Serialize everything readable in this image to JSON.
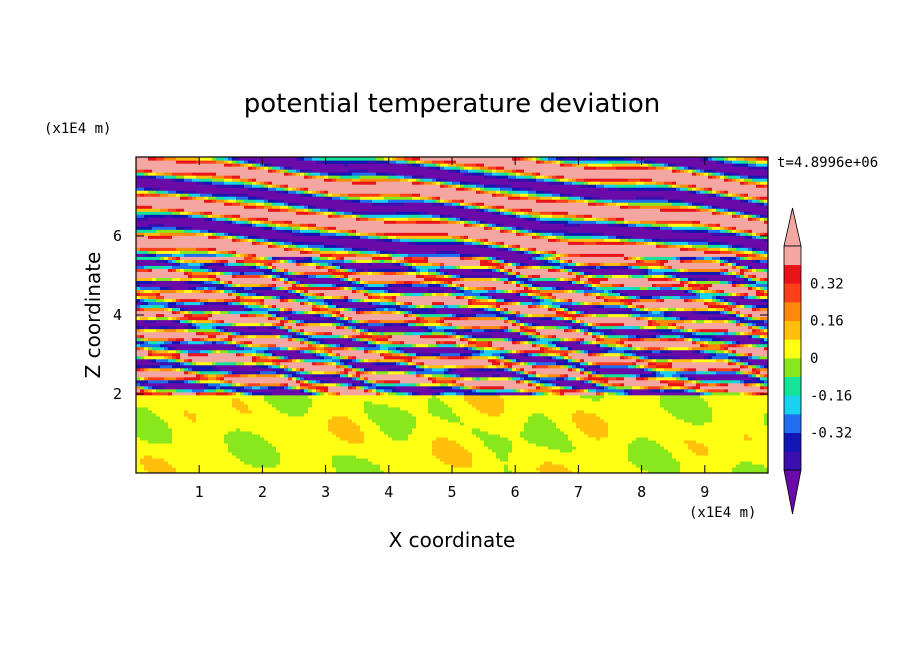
{
  "chart_data": {
    "type": "heatmap",
    "title": "potential temperature deviation",
    "xlabel": "X coordinate",
    "ylabel": "Z coordinate",
    "x_unit": "(x1E4 m)",
    "y_unit": "(x1E4 m)",
    "time_label": "t=4.8996e+06",
    "xlim": [
      0,
      10
    ],
    "ylim": [
      0,
      8
    ],
    "x_ticks": [
      "1",
      "2",
      "3",
      "4",
      "5",
      "6",
      "7",
      "8",
      "9"
    ],
    "y_ticks": [
      "2",
      "4",
      "6"
    ],
    "colorbar": {
      "levels": [
        -0.48,
        -0.4,
        -0.32,
        -0.24,
        -0.16,
        -0.08,
        0,
        0.08,
        0.16,
        0.24,
        0.32,
        0.4,
        0.48
      ],
      "tick_labels": [
        "0.32",
        "0.16",
        "0",
        "-0.16",
        "-0.32"
      ],
      "colors": [
        "#6a0aa8",
        "#3a0fae",
        "#1217b3",
        "#1f6ef0",
        "#18d2f0",
        "#15e39a",
        "#88e81c",
        "#ffff14",
        "#ffbf0a",
        "#ff8a0a",
        "#ff3f1a",
        "#e8141a",
        "#f3a6a2"
      ],
      "extend": "both"
    },
    "regions": [
      {
        "z_range": [
          0,
          2.0
        ],
        "pattern": "lower layer mostly 0 to 0.08 (green) with patches near 0"
      },
      {
        "z_range": [
          2.0,
          5.5
        ],
        "pattern": "thin alternating bands from -0.48 to 0.48, sloping upward to the left"
      },
      {
        "z_range": [
          5.5,
          8.0
        ],
        "pattern": "thick alternating bands of below -0.48 (purple) and above 0.48 (pink)"
      }
    ]
  }
}
